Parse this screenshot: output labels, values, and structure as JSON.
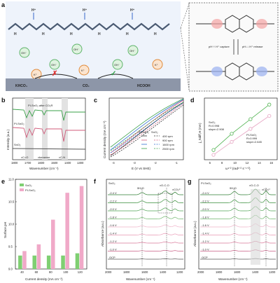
{
  "panels": {
    "a": {
      "label": "a",
      "ions": {
        "h_plus": "H⁺",
        "oh_minus": "OH⁻",
        "k_plus": "K⁺"
      },
      "amine": "H",
      "khco3": "KHCO₃",
      "co2": "CO₂",
      "hcooh": "HCOOH",
      "inset_capture": "pH↑↑ H⁺ capture",
      "inset_release": "pH↓↓ H⁺ release",
      "colors": {
        "h_plus": "#3b6fd6",
        "oh_minus": "#5fb46b",
        "k_plus": "#e08a3a",
        "polymer": "#4a5a72"
      }
    },
    "b": {
      "label": "b",
      "ylabel": "Intensity (a.u.)",
      "xlabel": "Wavenumber (cm⁻¹)",
      "xticks": [
        "1800",
        "1700",
        "1600",
        "1500",
        "1400",
        "1300"
      ],
      "traces": [
        "PI-SnO₂ after CO₂R",
        "PI-SnO₂",
        "SnO₂"
      ],
      "annotations": [
        "νC=O",
        "νbenzene",
        "νC-N"
      ],
      "colors": {
        "after": "#3aa04a",
        "pi": "#d05a7a",
        "sno2": "#555555"
      }
    },
    "c": {
      "label": "c",
      "ylabel": "Current density (mA cm⁻²)",
      "xlabel": "E (V vs SHE)",
      "xticks": [
        "-4",
        "-3",
        "-2",
        "-1"
      ],
      "legend_head": [
        "PI-SnO₂",
        "SnO₂"
      ],
      "legend": [
        "400 rpm",
        "900 rpm",
        "1600 rpm",
        "2500 rpm"
      ],
      "colors": [
        "#333333",
        "#d05a7a",
        "#2f6fd0",
        "#3aa04a"
      ]
    },
    "d": {
      "label": "d",
      "ylabel": "j_Sdiff,H (mA)",
      "xlabel": "ω¹ᐟ² (rad¹ᐟ² s⁻¹ᐟ²)",
      "xticks": [
        "6",
        "8",
        "10",
        "12",
        "14",
        "16"
      ],
      "sno2": {
        "name": "SnO₂",
        "r": "R=0.998",
        "slope": "slope=2.908",
        "color": "#4fb24f"
      },
      "pi": {
        "name": "PI-SnO₂",
        "r": "R=0.999",
        "slope": "slope=2.645",
        "color": "#e6a3c1"
      }
    },
    "e": {
      "label": "e",
      "ylabel": "Surface pH",
      "xlabel": "Current density (mA cm⁻²)",
      "legend": [
        "SnO₂",
        "PI-SnO₂"
      ],
      "colors": [
        "#7fcf72",
        "#f0a9c8"
      ]
    },
    "f": {
      "label": "f",
      "title": "SnO₂",
      "ylabel": "Absorbance (a.u.)",
      "xlabel": "Wavenumber (cm⁻¹)",
      "xticks": [
        "2000",
        "1800",
        "1600",
        "1400",
        "1200"
      ],
      "bands": [
        "δH₂O",
        "νO-C-O",
        "νCO₃²⁻"
      ],
      "potentials": [
        "-2.4 V",
        "-2.2 V",
        "-2.0 V",
        "-1.8 V",
        "-1.6 V",
        "-1.4 V",
        "-1.2 V",
        "-1.0 V",
        "OCP"
      ]
    },
    "g": {
      "label": "g",
      "title": "PI-SnO₂",
      "ylabel": "Absorbance (a.u.)",
      "xlabel": "Wavenumber (cm⁻¹)",
      "xticks": [
        "2000",
        "1800",
        "1600",
        "1400",
        "1200"
      ],
      "bands": [
        "δH₂O",
        "νO-C-O",
        "νCO₃²⁻"
      ],
      "potentials": [
        "-2.4 V",
        "-2.2 V",
        "-2.0 V",
        "-1.8 V",
        "-1.6 V",
        "-1.4 V",
        "-1.2 V",
        "-1.0 V",
        "OCP"
      ]
    }
  },
  "chart_data": [
    {
      "type": "line",
      "panel": "d",
      "xlabel": "ω¹ᐟ² (rad¹ᐟ² s⁻¹ᐟ²)",
      "ylabel": "j_Sdiff,H (mA)",
      "x": [
        6.5,
        9.5,
        12.6,
        15.7
      ],
      "series": [
        {
          "name": "SnO₂",
          "values": [
            24,
            34,
            43,
            52
          ]
        },
        {
          "name": "PI-SnO₂",
          "values": [
            21,
            29,
            37,
            45
          ]
        }
      ],
      "xlim": [
        5,
        17
      ],
      "ylim": [
        18,
        56
      ]
    },
    {
      "type": "bar",
      "panel": "e",
      "title": "",
      "xlabel": "Current density (mA cm⁻²)",
      "ylabel": "Surface pH",
      "categories": [
        "40",
        "60",
        "80",
        "100",
        "120"
      ],
      "series": [
        {
          "name": "SnO₂",
          "values": [
            9.3,
            9.3,
            9.3,
            9.3,
            9.35
          ]
        },
        {
          "name": "PI-SnO₂",
          "values": [
            9.4,
            9.55,
            10.1,
            10.7,
            10.85
          ]
        }
      ],
      "yticks": [
        "9.0",
        "9.5",
        "10.0",
        "10.5",
        "11.0"
      ],
      "ylim": [
        9.0,
        11.0
      ]
    }
  ]
}
